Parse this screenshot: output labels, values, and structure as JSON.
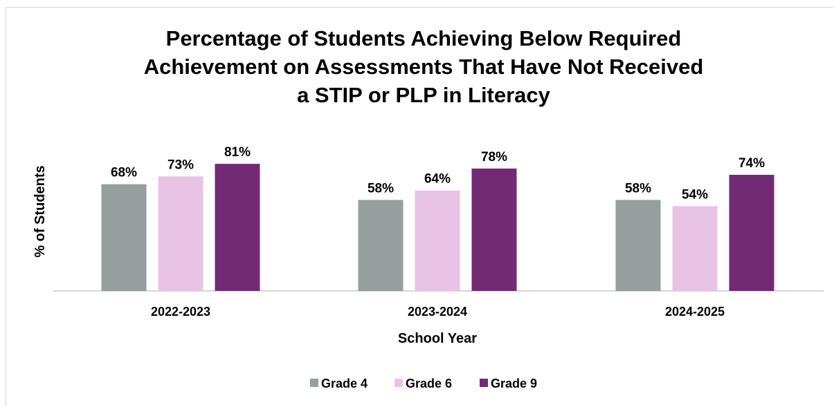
{
  "chart_data": {
    "type": "bar",
    "title_lines": [
      "Percentage of Students Achieving Below Required",
      "Achievement on Assessments That Have Not Received",
      "a STIP or PLP in Literacy"
    ],
    "xlabel": "School Year",
    "ylabel": "% of Students",
    "categories": [
      "2022-2023",
      "2023-2024",
      "2024-2025"
    ],
    "series": [
      {
        "name": "Grade 4",
        "color": "#959f9e",
        "values": [
          68,
          58,
          58
        ],
        "labels": [
          "68%",
          "58%",
          "58%"
        ]
      },
      {
        "name": "Grade 6",
        "color": "#e8c3e6",
        "values": [
          73,
          64,
          54
        ],
        "labels": [
          "73%",
          "64%",
          "54%"
        ]
      },
      {
        "name": "Grade 9",
        "color": "#722a75",
        "values": [
          81,
          78,
          74
        ],
        "labels": [
          "81%",
          "78%",
          "74%"
        ]
      }
    ],
    "ylim": [
      0,
      100
    ],
    "grid": false,
    "legend_position": "bottom"
  }
}
